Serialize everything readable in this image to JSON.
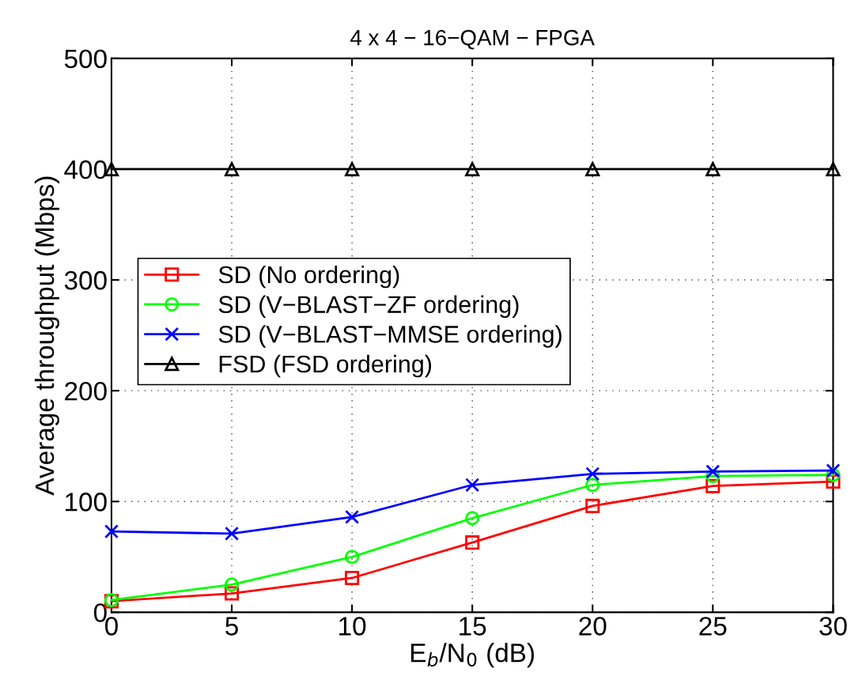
{
  "chart_data": {
    "type": "line",
    "title": "4 x 4 − 16−QAM − FPGA",
    "xlabel": "E$_{b}$/N$_{0}$ (dB)",
    "ylabel": "Average throughput (Mbps)",
    "x": [
      0,
      5,
      10,
      15,
      20,
      25,
      30
    ],
    "series": [
      {
        "name": "SD (No ordering)",
        "color": "#ff0000",
        "marker": "square",
        "values": [
          10,
          17,
          31,
          63,
          96,
          114,
          118
        ]
      },
      {
        "name": "SD (V−BLAST−ZF ordering)",
        "color": "#00ff00",
        "marker": "circle",
        "values": [
          11,
          25,
          50,
          85,
          115,
          123,
          124
        ]
      },
      {
        "name": "SD (V−BLAST−MMSE ordering)",
        "color": "#0000ff",
        "marker": "cross",
        "values": [
          73,
          71,
          86,
          115,
          125,
          127,
          128
        ]
      },
      {
        "name": "FSD (FSD ordering)",
        "color": "#000000",
        "marker": "triangle",
        "values": [
          400,
          400,
          400,
          400,
          400,
          400,
          400
        ]
      }
    ],
    "xlim": [
      0,
      30
    ],
    "xticks": [
      0,
      5,
      10,
      15,
      20,
      25,
      30
    ],
    "ylim": [
      0,
      500
    ],
    "yticks": [
      0,
      100,
      200,
      300,
      400,
      500
    ],
    "grid": true,
    "legend": "left",
    "line_style": "solid"
  }
}
